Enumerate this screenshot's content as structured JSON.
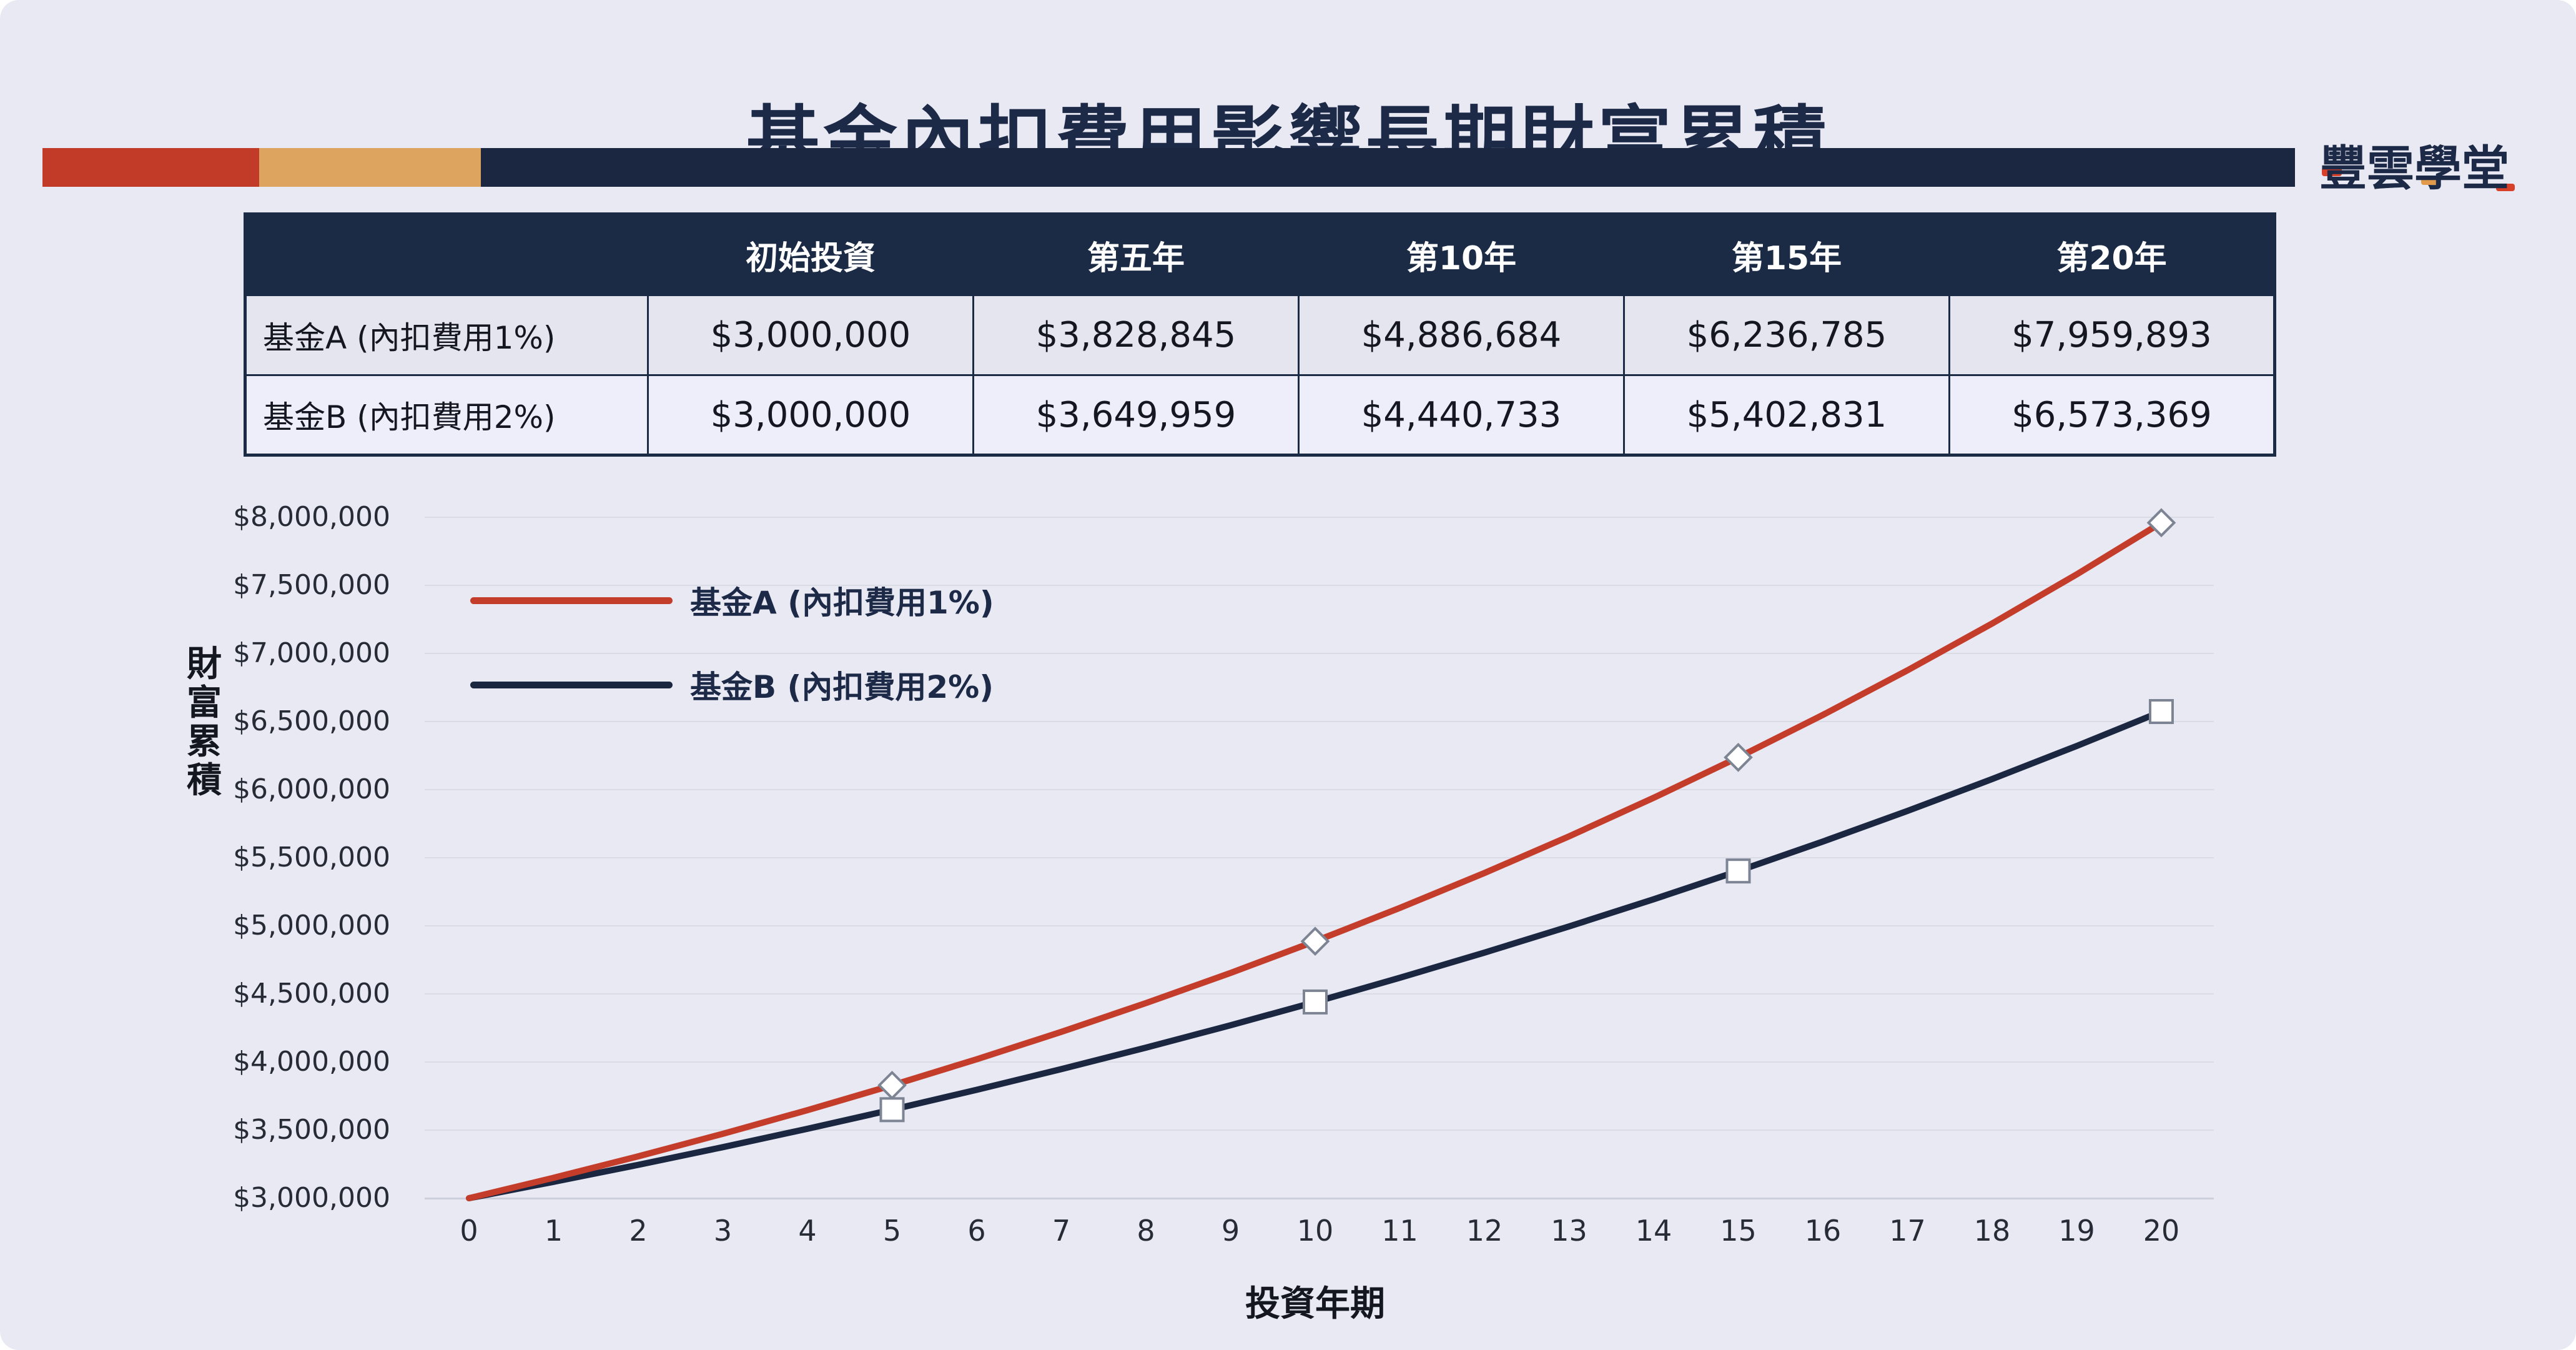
{
  "page": {
    "title": "基金內扣費用影響長期財富累積",
    "brand": "豐雲學堂"
  },
  "colors": {
    "background": "#e8e9f3",
    "navy": "#1c2b45",
    "red": "#c23b28",
    "tan": "#dda45f",
    "grid": "#d9dbe5",
    "marker_stroke": "#7d8494",
    "header_text": "#ffffff",
    "body_text": "#14171f"
  },
  "table": {
    "headers": [
      "",
      "初始投資",
      "第五年",
      "第10年",
      "第15年",
      "第20年"
    ],
    "rows": [
      {
        "label": "基金A (內扣費用1%)",
        "values": [
          "$3,000,000",
          "$3,828,845",
          "$4,886,684",
          "$6,236,785",
          "$7,959,893"
        ]
      },
      {
        "label": "基金B (內扣費用2%)",
        "values": [
          "$3,000,000",
          "$3,649,959",
          "$4,440,733",
          "$5,402,831",
          "$6,573,369"
        ]
      }
    ]
  },
  "chart_data": {
    "type": "line",
    "title": "",
    "xlabel": "投資年期",
    "ylabel": "財富累積",
    "x": [
      0,
      1,
      2,
      3,
      4,
      5,
      6,
      7,
      8,
      9,
      10,
      11,
      12,
      13,
      14,
      15,
      16,
      17,
      18,
      19,
      20
    ],
    "xlim": [
      0,
      20
    ],
    "ylim": [
      3000000,
      8000000
    ],
    "grid": "horizontal",
    "legend_position": "upper-left-inside",
    "y_tick_values": [
      3000000,
      3500000,
      4000000,
      4500000,
      5000000,
      5500000,
      6000000,
      6500000,
      7000000,
      7500000,
      8000000
    ],
    "y_tick_labels": [
      "$3,000,000",
      "$3,500,000",
      "$4,000,000",
      "$4,500,000",
      "$5,000,000",
      "$5,500,000",
      "$6,000,000",
      "$6,500,000",
      "$7,000,000",
      "$7,500,000",
      "$8,000,000"
    ],
    "series": [
      {
        "name": "基金A (內扣費用1%)",
        "color": "#c43c2a",
        "marker": "diamond",
        "marker_years": [
          5,
          10,
          15,
          20
        ],
        "values": [
          3000000,
          3150000,
          3307500,
          3472875,
          3646519,
          3828845,
          4020287,
          4221301,
          4432366,
          4653985,
          4886684,
          5131018,
          5387569,
          5656947,
          5939795,
          6236785,
          6548624,
          6876055,
          7219858,
          7580851,
          7959893
        ]
      },
      {
        "name": "基金B (內扣費用2%)",
        "color": "#1b2740",
        "marker": "square",
        "marker_years": [
          5,
          10,
          15,
          20
        ],
        "values": [
          3000000,
          3120000,
          3244800,
          3374592,
          3509576,
          3649959,
          3795957,
          3947795,
          4105707,
          4269935,
          4440733,
          4618362,
          4803097,
          4995221,
          5195029,
          5402831,
          5618944,
          5843701,
          6077450,
          6320548,
          6573369
        ]
      }
    ]
  }
}
